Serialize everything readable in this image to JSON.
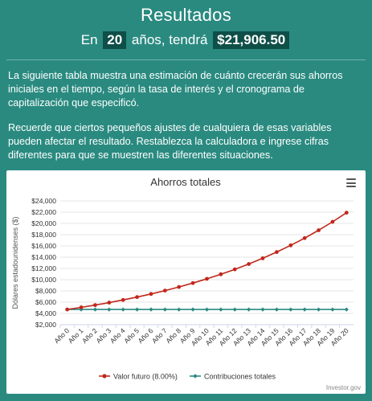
{
  "header": {
    "title": "Resultados",
    "prefix": "En",
    "years": "20",
    "middle": "años, tendrá",
    "amount": "$21,906.50"
  },
  "paragraphs": [
    "La siguiente tabla muestra una estimación de cuánto crecerán sus ahorros iniciales en el tiempo, según la tasa de interés y el cronograma de capitalización que especificó.",
    "Recuerde que ciertos pequeños ajustes de cualquiera de esas variables pueden afectar el resultado. Restablezca la calculadora e ingrese cifras diferentes para que se muestren las diferentes situaciones."
  ],
  "chart_data": {
    "type": "line",
    "title": "Ahorros totales",
    "ylabel": "Dólares estadounidenses ($)",
    "xlabel": "",
    "ylim": [
      2000,
      24000
    ],
    "ytick_labels": [
      "$2,000",
      "$4,000",
      "$6,000",
      "$8,000",
      "$10,000",
      "$12,000",
      "$14,000",
      "$16,000",
      "$18,000",
      "$20,000",
      "$22,000",
      "$24,000"
    ],
    "yticks": [
      2000,
      4000,
      6000,
      8000,
      10000,
      12000,
      14000,
      16000,
      18000,
      20000,
      22000,
      24000
    ],
    "categories": [
      "Año 0",
      "Año 1",
      "Año 2",
      "Año 3",
      "Año 4",
      "Año 5",
      "Año 6",
      "Año 7",
      "Año 8",
      "Año 9",
      "Año 10",
      "Año 11",
      "Año 12",
      "Año 13",
      "Año 14",
      "Año 15",
      "Año 16",
      "Año 17",
      "Año 18",
      "Año 19",
      "Año 20"
    ],
    "series": [
      {
        "name": "Valor futuro (8.00%)",
        "color": "#c0281c",
        "values": [
          4700,
          5076,
          5482,
          5921,
          6394,
          6906,
          7458,
          8055,
          8699,
          9395,
          10147,
          10958,
          11835,
          12782,
          13804,
          14909,
          16101,
          17390,
          18781,
          20283,
          21906.5
        ]
      },
      {
        "name": "Contribuciones totales",
        "color": "#2a8a80",
        "values": [
          4700,
          4700,
          4700,
          4700,
          4700,
          4700,
          4700,
          4700,
          4700,
          4700,
          4700,
          4700,
          4700,
          4700,
          4700,
          4700,
          4700,
          4700,
          4700,
          4700,
          4700
        ]
      }
    ],
    "grid": true,
    "legend": "bottom",
    "credit": "Investor.gov"
  }
}
